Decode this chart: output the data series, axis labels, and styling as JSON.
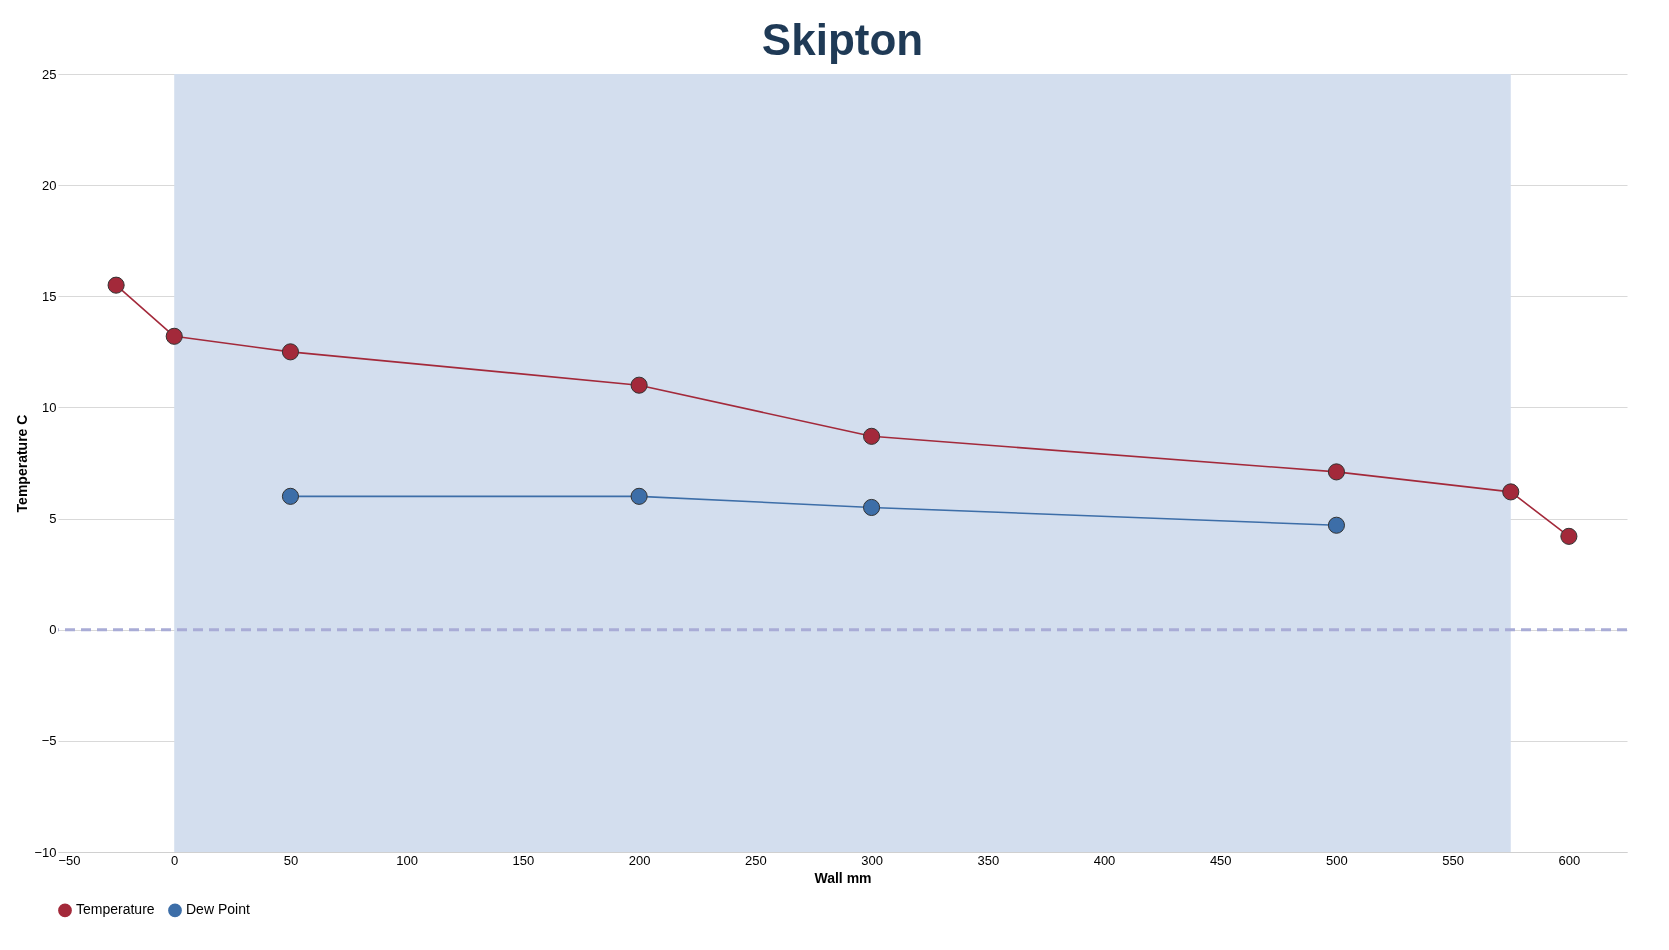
{
  "chart_data": {
    "type": "line",
    "title": "Skipton",
    "xlabel": "Wall mm",
    "ylabel": "Temperature C",
    "series": [
      {
        "name": "Temperature",
        "color": "#a3293a",
        "x": [
          -25,
          0,
          50,
          200,
          300,
          500,
          575,
          600
        ],
        "values": [
          15.5,
          13.2,
          12.5,
          11.0,
          8.7,
          7.1,
          6.2,
          4.2
        ]
      },
      {
        "name": "Dew Point",
        "color": "#3d6ea8",
        "x": [
          50,
          200,
          300,
          500
        ],
        "values": [
          6.0,
          6.0,
          5.5,
          4.7
        ]
      }
    ],
    "xlim": [
      -50,
      625
    ],
    "xticks": [
      -50,
      0,
      50,
      100,
      150,
      200,
      250,
      300,
      350,
      400,
      450,
      500,
      550,
      600
    ],
    "ylim": [
      -10,
      25
    ],
    "yticks": [
      -10,
      -5,
      0,
      5,
      10,
      15,
      20,
      25
    ],
    "ref_lines": [
      {
        "axis": "y",
        "value": 0,
        "label": null,
        "color": "#a9acd6",
        "line_style": "dashed"
      }
    ],
    "bands": [
      {
        "axis": "x",
        "from": 0,
        "to": 575,
        "label": null,
        "color": "#d3deee"
      }
    ],
    "grid": "y",
    "legend": "bottom",
    "marker": "circle",
    "line_style": "solid"
  }
}
